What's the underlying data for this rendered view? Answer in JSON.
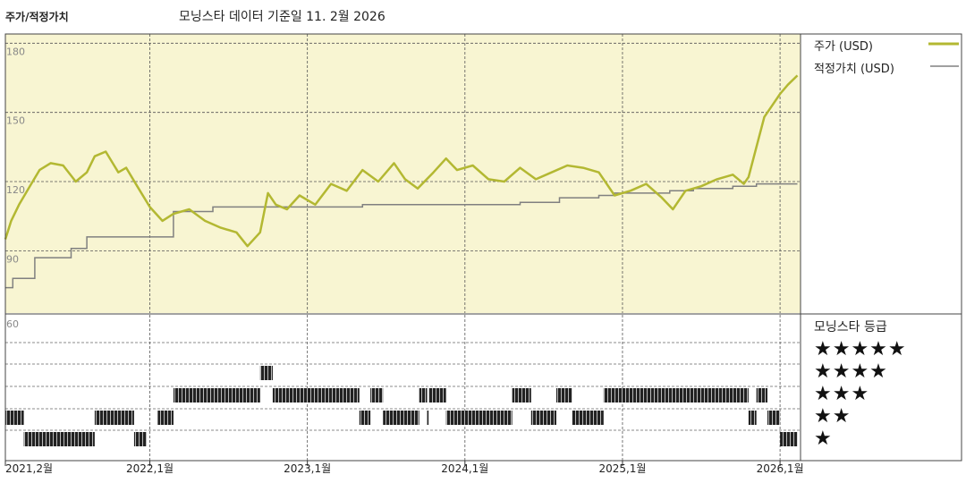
{
  "header": {
    "title": "주가/적정가치",
    "source": "모닝스타 데이터 기준일 11. 2월 2026"
  },
  "legend": {
    "price_label": "주가 (USD)",
    "fair_label": "적정가치 (USD)",
    "price_color": "#b3b832",
    "fair_color": "#808080"
  },
  "rating": {
    "title": "모닝스타 등급",
    "levels": [
      "★★★★★",
      "★★★★",
      "★★★",
      "★★",
      "★"
    ]
  },
  "colors": {
    "plot_background": "#f8f5d2",
    "price_line": "#b3b832",
    "fair_line": "#808080",
    "rating_bar": "#222222"
  },
  "chart_data": {
    "type": "line",
    "x_tick_labels": [
      "2021,2월",
      "2022,1월",
      "2023,1월",
      "2024,1월",
      "2025,1월",
      "2026,1월"
    ],
    "x_ticks": [
      2021.083,
      2022.0,
      2023.0,
      2024.0,
      2025.0,
      2026.0
    ],
    "x_range": [
      2021.083,
      2026.13
    ],
    "y_tick_labels": [
      "180",
      "150",
      "120",
      "90"
    ],
    "y_ticks": [
      180,
      150,
      120,
      90
    ],
    "ylim": [
      63,
      184
    ],
    "grid": true,
    "legend_position": "top-right",
    "series": [
      {
        "name": "주가 (USD)",
        "x": [
          2021.083,
          2021.12,
          2021.17,
          2021.23,
          2021.3,
          2021.37,
          2021.45,
          2021.53,
          2021.6,
          2021.65,
          2021.72,
          2021.8,
          2021.85,
          2021.92,
          2022.0,
          2022.08,
          2022.15,
          2022.25,
          2022.35,
          2022.45,
          2022.55,
          2022.62,
          2022.7,
          2022.75,
          2022.8,
          2022.87,
          2022.95,
          2023.05,
          2023.15,
          2023.25,
          2023.35,
          2023.45,
          2023.55,
          2023.62,
          2023.7,
          2023.8,
          2023.88,
          2023.95,
          2024.05,
          2024.15,
          2024.25,
          2024.35,
          2024.45,
          2024.55,
          2024.65,
          2024.75,
          2024.85,
          2024.95,
          2025.05,
          2025.15,
          2025.25,
          2025.32,
          2025.4,
          2025.5,
          2025.6,
          2025.7,
          2025.77,
          2025.8,
          2025.85,
          2025.9,
          2025.95,
          2026.0,
          2026.05,
          2026.11
        ],
        "values": [
          95,
          103,
          110,
          117,
          125,
          128,
          127,
          120,
          124,
          131,
          133,
          124,
          126,
          118,
          109,
          103,
          106,
          108,
          103,
          100,
          98,
          92,
          98,
          115,
          110,
          108,
          114,
          110,
          119,
          116,
          125,
          120,
          128,
          121,
          117,
          124,
          130,
          125,
          127,
          121,
          120,
          126,
          121,
          124,
          127,
          126,
          124,
          114,
          116,
          119,
          113,
          108,
          116,
          118,
          121,
          123,
          119,
          122,
          135,
          148,
          153,
          158,
          162,
          166
        ]
      },
      {
        "name": "적정가치 (USD)",
        "x": [
          2021.083,
          2021.13,
          2021.13,
          2021.27,
          2021.27,
          2021.5,
          2021.5,
          2021.6,
          2021.6,
          2022.15,
          2022.15,
          2022.4,
          2022.4,
          2023.35,
          2023.35,
          2024.35,
          2024.35,
          2024.6,
          2024.6,
          2024.85,
          2024.85,
          2024.95,
          2024.95,
          2025.3,
          2025.3,
          2025.45,
          2025.45,
          2025.7,
          2025.7,
          2025.85,
          2025.85,
          2026.11
        ],
        "values": [
          74,
          74,
          78,
          78,
          87,
          87,
          91,
          91,
          96,
          96,
          107,
          107,
          109,
          109,
          110,
          110,
          111,
          111,
          113,
          113,
          114,
          114,
          115,
          115,
          116,
          116,
          117,
          117,
          118,
          118,
          119,
          119
        ]
      }
    ],
    "rating_history": [
      {
        "stars": 2,
        "spans": [
          [
            2021.083,
            2021.2
          ],
          [
            2021.65,
            2021.9
          ],
          [
            2022.05,
            2022.15
          ],
          [
            2023.33,
            2023.4
          ],
          [
            2023.48,
            2023.71
          ],
          [
            2023.76,
            2023.77
          ],
          [
            2023.88,
            2024.3
          ],
          [
            2024.42,
            2024.58
          ],
          [
            2024.68,
            2024.88
          ],
          [
            2025.8,
            2025.85
          ],
          [
            2025.92,
            2026.0
          ]
        ]
      },
      {
        "stars": 1,
        "spans": [
          [
            2021.2,
            2021.65
          ],
          [
            2021.9,
            2021.98
          ],
          [
            2026.0,
            2026.11
          ]
        ]
      },
      {
        "stars": 3,
        "spans": [
          [
            2022.15,
            2022.7
          ],
          [
            2022.78,
            2023.33
          ],
          [
            2023.4,
            2023.48
          ],
          [
            2023.71,
            2023.76
          ],
          [
            2023.77,
            2023.88
          ],
          [
            2024.3,
            2024.42
          ],
          [
            2024.58,
            2024.68
          ],
          [
            2024.88,
            2025.8
          ],
          [
            2025.85,
            2025.92
          ]
        ]
      },
      {
        "stars": 4,
        "spans": [
          [
            2022.7,
            2022.78
          ]
        ]
      }
    ]
  }
}
